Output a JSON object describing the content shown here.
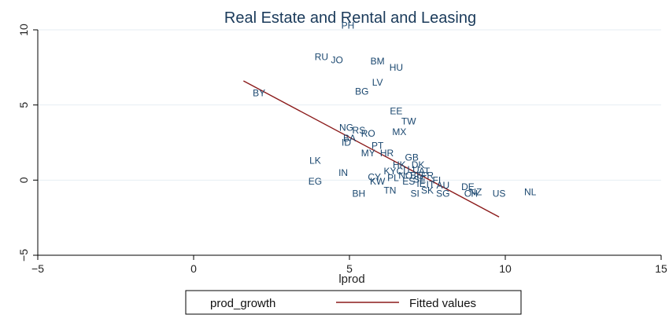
{
  "chart_data": {
    "type": "scatter",
    "title": "Real Estate and Rental and Leasing",
    "xlabel": "lprod",
    "ylabel": "",
    "xlim": [
      -5,
      15
    ],
    "ylim": [
      -5,
      10
    ],
    "xticks": [
      -5,
      0,
      5,
      10,
      15
    ],
    "yticks": [
      -5,
      0,
      5,
      10
    ],
    "xtick_labels": [
      "−5",
      "0",
      "5",
      "10",
      "15"
    ],
    "ytick_labels": [
      "−5",
      "0",
      "5",
      "10"
    ],
    "grid": true,
    "legend_position": "bottom",
    "colors": {
      "points": "#1a476f",
      "fit_line": "#8b1a1a",
      "grid": "#e6eef3",
      "title": "#1a3a5a"
    },
    "series": [
      {
        "name": "prod_growth",
        "kind": "labeled-scatter",
        "points": [
          {
            "label": "PH",
            "x": 4.95,
            "y": 10.3
          },
          {
            "label": "RU",
            "x": 4.1,
            "y": 8.2
          },
          {
            "label": "JO",
            "x": 4.6,
            "y": 8.0
          },
          {
            "label": "BM",
            "x": 5.9,
            "y": 7.9
          },
          {
            "label": "HU",
            "x": 6.5,
            "y": 7.5
          },
          {
            "label": "LV",
            "x": 5.9,
            "y": 6.5
          },
          {
            "label": "BG",
            "x": 5.4,
            "y": 5.9
          },
          {
            "label": "BY",
            "x": 2.1,
            "y": 5.8
          },
          {
            "label": "EE",
            "x": 6.5,
            "y": 4.6
          },
          {
            "label": "TW",
            "x": 6.9,
            "y": 3.9
          },
          {
            "label": "NG",
            "x": 4.9,
            "y": 3.5
          },
          {
            "label": "RS",
            "x": 5.3,
            "y": 3.3
          },
          {
            "label": "RO",
            "x": 5.6,
            "y": 3.1
          },
          {
            "label": "BA",
            "x": 5.0,
            "y": 2.8
          },
          {
            "label": "MX",
            "x": 6.6,
            "y": 3.2
          },
          {
            "label": "ID",
            "x": 4.9,
            "y": 2.5
          },
          {
            "label": "PT",
            "x": 5.9,
            "y": 2.3
          },
          {
            "label": "MY",
            "x": 5.6,
            "y": 1.8
          },
          {
            "label": "HR",
            "x": 6.2,
            "y": 1.8
          },
          {
            "label": "GB",
            "x": 7.0,
            "y": 1.5
          },
          {
            "label": "HK",
            "x": 6.6,
            "y": 1.0
          },
          {
            "label": "DK",
            "x": 7.2,
            "y": 1.0
          },
          {
            "label": "KY",
            "x": 6.3,
            "y": 0.6
          },
          {
            "label": "CL",
            "x": 6.7,
            "y": 0.6
          },
          {
            "label": "LU",
            "x": 7.05,
            "y": 0.7
          },
          {
            "label": "AT",
            "x": 7.4,
            "y": 0.6
          },
          {
            "label": "NO",
            "x": 6.8,
            "y": 0.3
          },
          {
            "label": "BE",
            "x": 7.15,
            "y": 0.3
          },
          {
            "label": "FR",
            "x": 7.5,
            "y": 0.3
          },
          {
            "label": "CY",
            "x": 5.8,
            "y": 0.2
          },
          {
            "label": "PL",
            "x": 6.4,
            "y": 0.15
          },
          {
            "label": "SE",
            "x": 7.25,
            "y": 0.05
          },
          {
            "label": "FI",
            "x": 7.8,
            "y": 0.0
          },
          {
            "label": "KW",
            "x": 5.9,
            "y": -0.1
          },
          {
            "label": "ES",
            "x": 6.9,
            "y": -0.1
          },
          {
            "label": "IE",
            "x": 7.3,
            "y": -0.25
          },
          {
            "label": "IT",
            "x": 7.6,
            "y": -0.3
          },
          {
            "label": "AU",
            "x": 8.0,
            "y": -0.35
          },
          {
            "label": "DE",
            "x": 8.8,
            "y": -0.45
          },
          {
            "label": "LK",
            "x": 3.9,
            "y": 1.3
          },
          {
            "label": "IN",
            "x": 4.8,
            "y": 0.5
          },
          {
            "label": "EG",
            "x": 3.9,
            "y": -0.1
          },
          {
            "label": "TN",
            "x": 6.3,
            "y": -0.7
          },
          {
            "label": "SK",
            "x": 7.5,
            "y": -0.7
          },
          {
            "label": "BH",
            "x": 5.3,
            "y": -0.9
          },
          {
            "label": "SI",
            "x": 7.1,
            "y": -0.9
          },
          {
            "label": "SG",
            "x": 8.0,
            "y": -0.9
          },
          {
            "label": "CH",
            "x": 8.9,
            "y": -0.9
          },
          {
            "label": "NZ",
            "x": 9.05,
            "y": -0.8
          },
          {
            "label": "US",
            "x": 9.8,
            "y": -0.9
          },
          {
            "label": "NL",
            "x": 10.8,
            "y": -0.8
          }
        ]
      },
      {
        "name": "Fitted values",
        "kind": "line",
        "x": [
          1.6,
          9.8
        ],
        "y": [
          6.6,
          -2.45
        ]
      }
    ]
  }
}
